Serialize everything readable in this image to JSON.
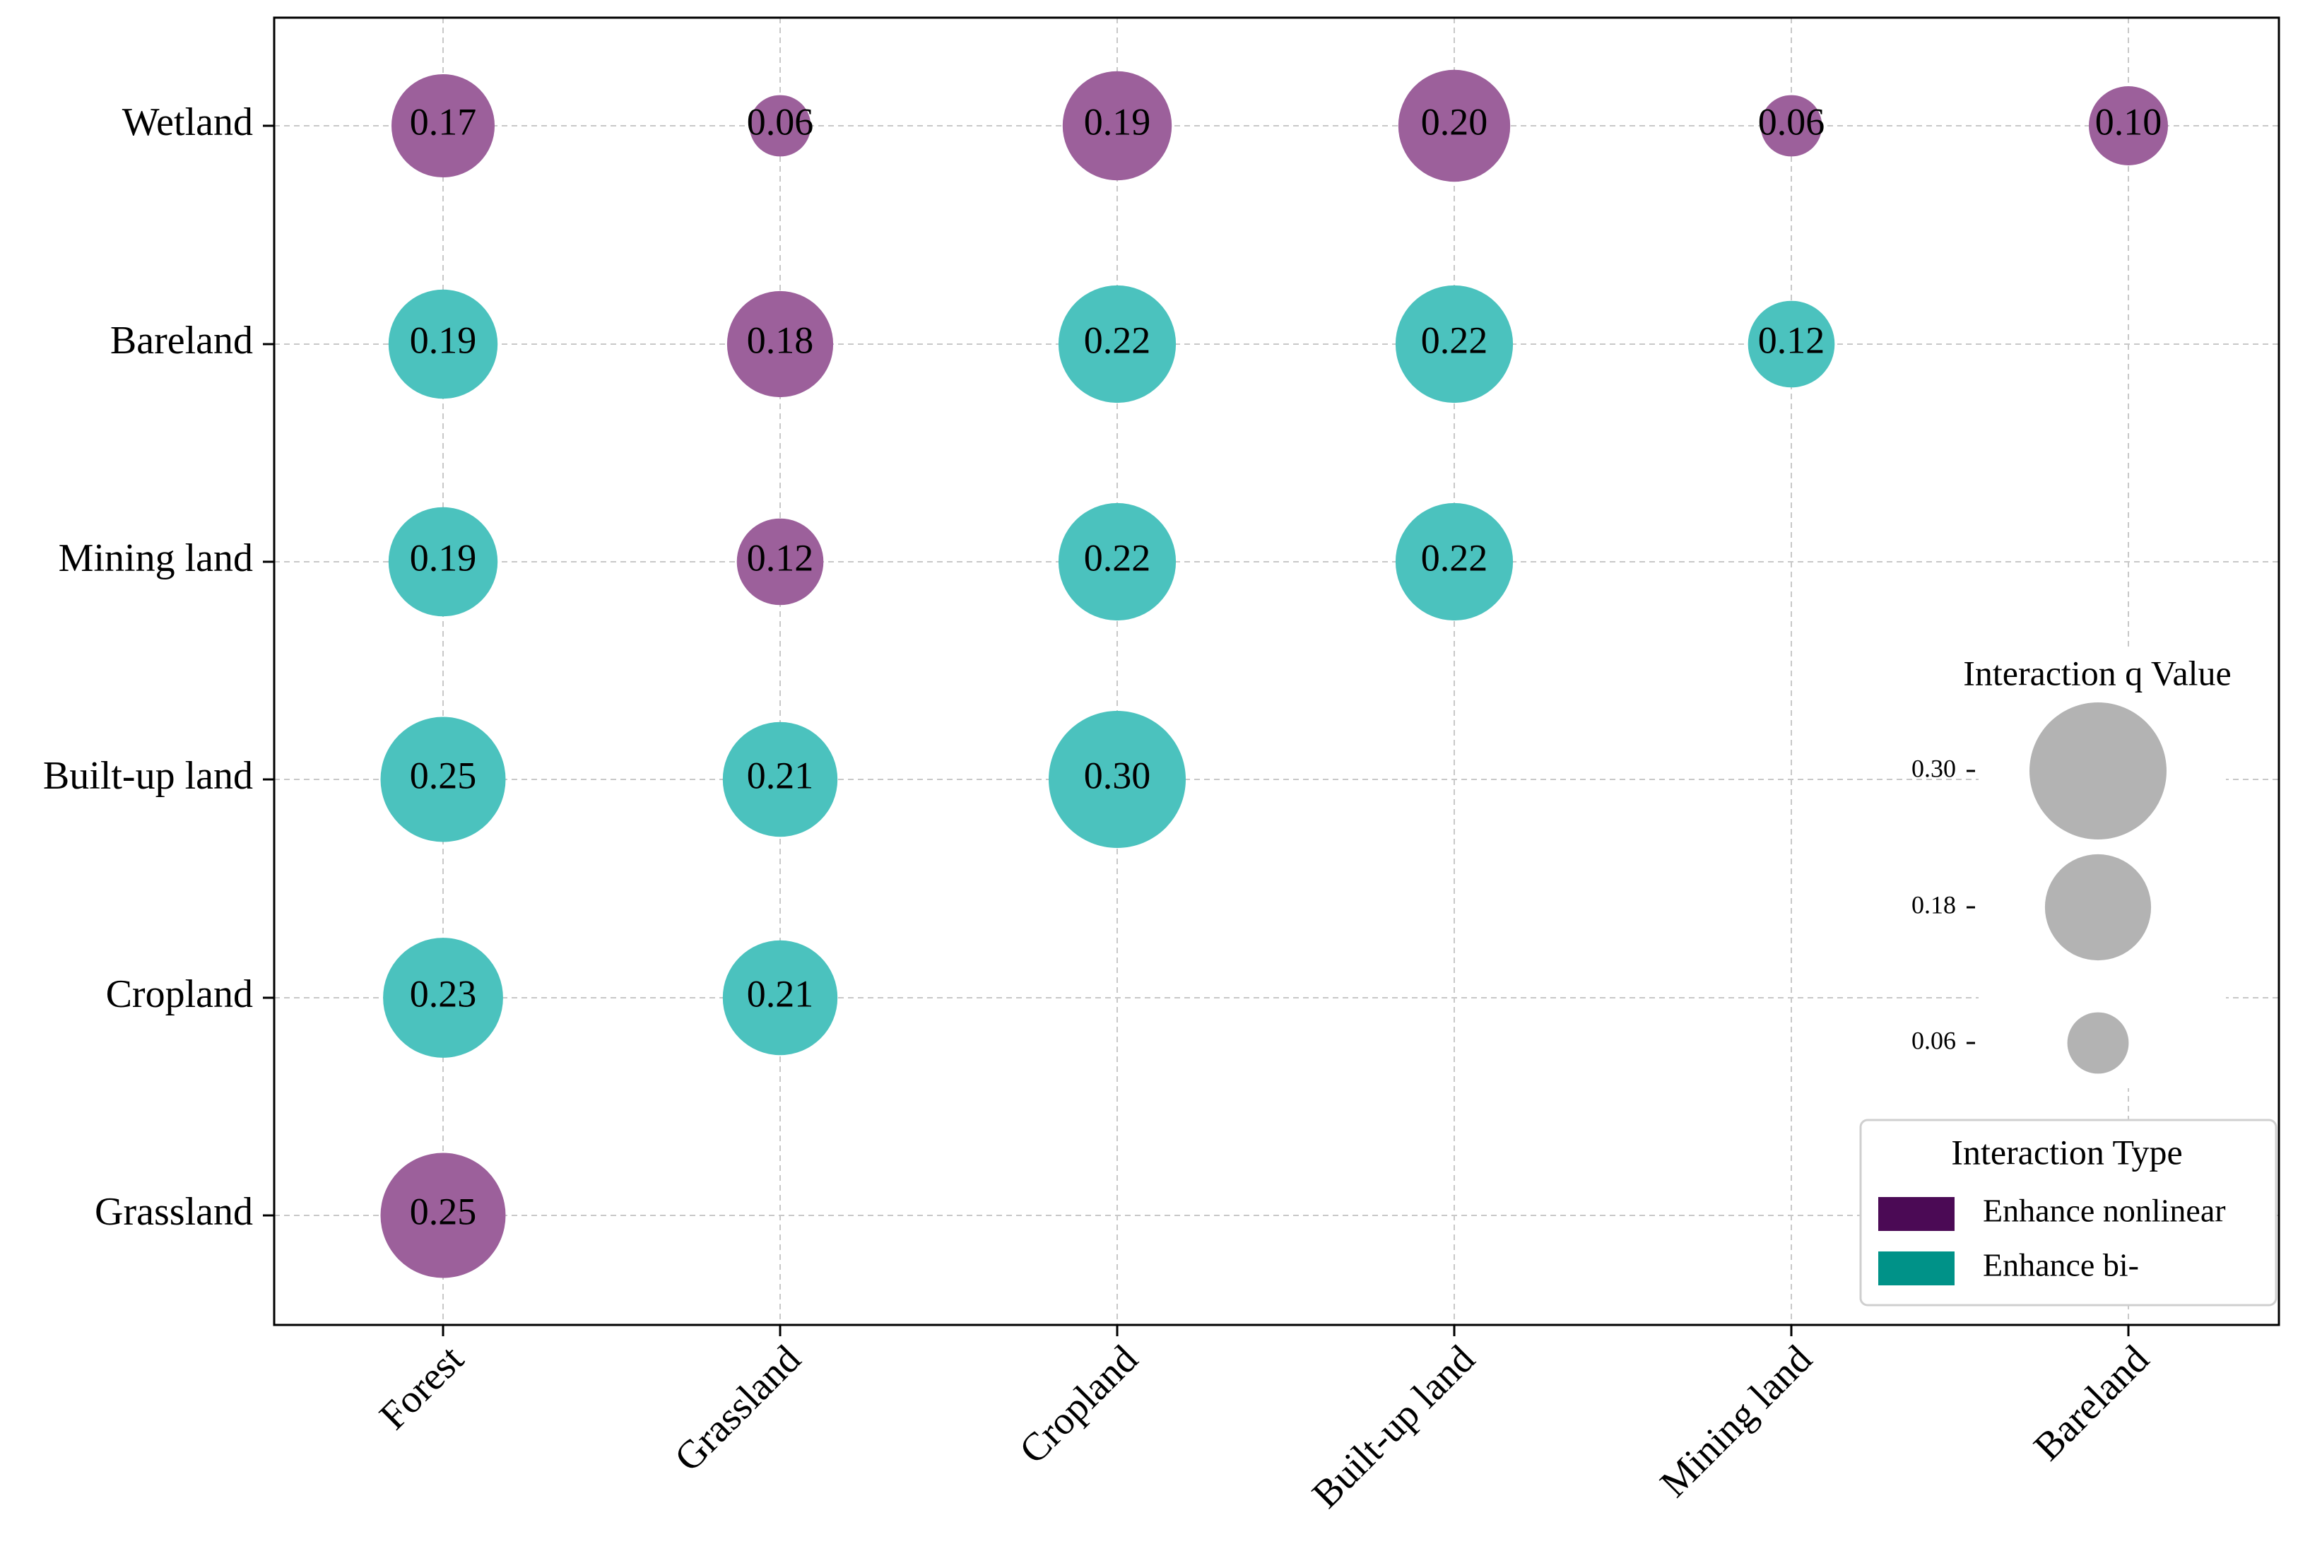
{
  "chart_data": {
    "type": "scatter",
    "subtype": "bubble-matrix",
    "title": "",
    "xlabel": "",
    "ylabel": "",
    "x_categories": [
      "Forest",
      "Grassland",
      "Cropland",
      "Built-up land",
      "Mining land",
      "Bareland"
    ],
    "y_categories": [
      "Wetland",
      "Bareland",
      "Mining land",
      "Built-up land",
      "Cropland",
      "Grassland"
    ],
    "grid": true,
    "points": [
      {
        "x": "Forest",
        "y": "Wetland",
        "value": 0.17,
        "label": "0.17",
        "type": "Enhance nonlinear"
      },
      {
        "x": "Grassland",
        "y": "Wetland",
        "value": 0.06,
        "label": "0.06",
        "type": "Enhance nonlinear"
      },
      {
        "x": "Cropland",
        "y": "Wetland",
        "value": 0.19,
        "label": "0.19",
        "type": "Enhance nonlinear"
      },
      {
        "x": "Built-up land",
        "y": "Wetland",
        "value": 0.2,
        "label": "0.20",
        "type": "Enhance nonlinear"
      },
      {
        "x": "Mining land",
        "y": "Wetland",
        "value": 0.06,
        "label": "0.06",
        "type": "Enhance nonlinear"
      },
      {
        "x": "Bareland",
        "y": "Wetland",
        "value": 0.1,
        "label": "0.10",
        "type": "Enhance nonlinear"
      },
      {
        "x": "Forest",
        "y": "Bareland",
        "value": 0.19,
        "label": "0.19",
        "type": "Enhance bi-"
      },
      {
        "x": "Grassland",
        "y": "Bareland",
        "value": 0.18,
        "label": "0.18",
        "type": "Enhance nonlinear"
      },
      {
        "x": "Cropland",
        "y": "Bareland",
        "value": 0.22,
        "label": "0.22",
        "type": "Enhance bi-"
      },
      {
        "x": "Built-up land",
        "y": "Bareland",
        "value": 0.22,
        "label": "0.22",
        "type": "Enhance bi-"
      },
      {
        "x": "Mining land",
        "y": "Bareland",
        "value": 0.12,
        "label": "0.12",
        "type": "Enhance bi-"
      },
      {
        "x": "Forest",
        "y": "Mining land",
        "value": 0.19,
        "label": "0.19",
        "type": "Enhance bi-"
      },
      {
        "x": "Grassland",
        "y": "Mining land",
        "value": 0.12,
        "label": "0.12",
        "type": "Enhance nonlinear"
      },
      {
        "x": "Cropland",
        "y": "Mining land",
        "value": 0.22,
        "label": "0.22",
        "type": "Enhance bi-"
      },
      {
        "x": "Built-up land",
        "y": "Mining land",
        "value": 0.22,
        "label": "0.22",
        "type": "Enhance bi-"
      },
      {
        "x": "Forest",
        "y": "Built-up land",
        "value": 0.25,
        "label": "0.25",
        "type": "Enhance bi-"
      },
      {
        "x": "Grassland",
        "y": "Built-up land",
        "value": 0.21,
        "label": "0.21",
        "type": "Enhance bi-"
      },
      {
        "x": "Cropland",
        "y": "Built-up land",
        "value": 0.3,
        "label": "0.30",
        "type": "Enhance bi-"
      },
      {
        "x": "Forest",
        "y": "Cropland",
        "value": 0.23,
        "label": "0.23",
        "type": "Enhance bi-"
      },
      {
        "x": "Grassland",
        "y": "Cropland",
        "value": 0.21,
        "label": "0.21",
        "type": "Enhance bi-"
      },
      {
        "x": "Forest",
        "y": "Grassland",
        "value": 0.25,
        "label": "0.25",
        "type": "Enhance nonlinear"
      }
    ],
    "size_legend": {
      "title": "Interaction q Value",
      "entries": [
        {
          "value": 0.3,
          "label": "0.30"
        },
        {
          "value": 0.18,
          "label": "0.18"
        },
        {
          "value": 0.06,
          "label": "0.06"
        }
      ]
    },
    "type_legend": {
      "title": "Interaction Type",
      "placement": "lower-right",
      "entries": [
        {
          "label": "Enhance nonlinear",
          "swatch_color": "#4b0a55",
          "bubble_color": "#9c609b"
        },
        {
          "label": "Enhance bi-",
          "swatch_color": "#009288",
          "bubble_color": "#4bc2be"
        }
      ]
    },
    "size_key_color": "#b3b3b3"
  }
}
